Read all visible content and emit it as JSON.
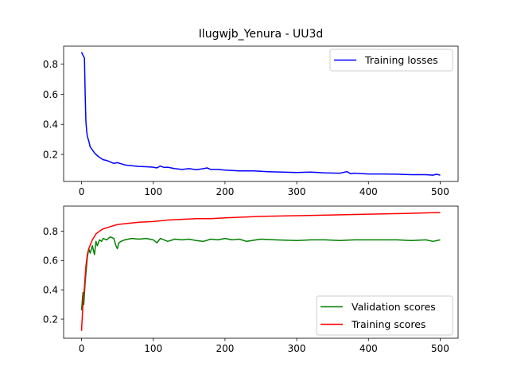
{
  "chart_data": [
    {
      "type": "line",
      "title": "Ilugwjb_Yenura - UU3d",
      "xlabel": "",
      "ylabel": "",
      "xlim": [
        -25,
        525
      ],
      "ylim": [
        0.02,
        0.92
      ],
      "xticks": [
        0,
        100,
        200,
        300,
        400,
        500
      ],
      "yticks": [
        0.2,
        0.4,
        0.6,
        0.8
      ],
      "grid": false,
      "legend_position": "top-right",
      "series": [
        {
          "name": "Training losses",
          "color": "#0000ff",
          "x": [
            0,
            2,
            4,
            5,
            6,
            7,
            8,
            10,
            12,
            15,
            18,
            20,
            25,
            30,
            35,
            40,
            45,
            50,
            55,
            60,
            70,
            80,
            90,
            100,
            105,
            110,
            115,
            120,
            130,
            140,
            150,
            160,
            170,
            175,
            180,
            190,
            200,
            220,
            240,
            260,
            280,
            300,
            320,
            340,
            360,
            370,
            375,
            380,
            400,
            420,
            440,
            460,
            480,
            490,
            495,
            500
          ],
          "values": [
            0.88,
            0.86,
            0.84,
            0.6,
            0.42,
            0.36,
            0.32,
            0.29,
            0.25,
            0.23,
            0.21,
            0.2,
            0.18,
            0.165,
            0.16,
            0.15,
            0.14,
            0.145,
            0.138,
            0.13,
            0.125,
            0.12,
            0.118,
            0.115,
            0.11,
            0.122,
            0.113,
            0.115,
            0.105,
            0.1,
            0.105,
            0.098,
            0.105,
            0.11,
            0.1,
            0.1,
            0.095,
            0.09,
            0.09,
            0.085,
            0.082,
            0.08,
            0.082,
            0.077,
            0.075,
            0.085,
            0.072,
            0.075,
            0.07,
            0.07,
            0.068,
            0.065,
            0.065,
            0.062,
            0.068,
            0.062
          ]
        }
      ]
    },
    {
      "type": "line",
      "title": "",
      "xlabel": "",
      "ylabel": "",
      "xlim": [
        -25,
        525
      ],
      "ylim": [
        0.07,
        0.97
      ],
      "xticks": [
        0,
        100,
        200,
        300,
        400,
        500
      ],
      "yticks": [
        0.2,
        0.4,
        0.6,
        0.8
      ],
      "grid": false,
      "legend_position": "bottom-right",
      "series": [
        {
          "name": "Validation scores",
          "color": "#008000",
          "x": [
            0,
            2,
            3,
            5,
            8,
            10,
            12,
            15,
            18,
            20,
            22,
            25,
            28,
            30,
            35,
            40,
            45,
            48,
            50,
            52,
            55,
            60,
            70,
            80,
            90,
            100,
            105,
            110,
            115,
            120,
            130,
            140,
            150,
            160,
            170,
            180,
            190,
            200,
            210,
            220,
            230,
            250,
            270,
            300,
            320,
            340,
            360,
            380,
            400,
            420,
            440,
            460,
            480,
            490,
            500
          ],
          "values": [
            0.26,
            0.38,
            0.3,
            0.45,
            0.62,
            0.68,
            0.65,
            0.7,
            0.64,
            0.73,
            0.7,
            0.74,
            0.73,
            0.75,
            0.74,
            0.76,
            0.75,
            0.7,
            0.68,
            0.72,
            0.73,
            0.74,
            0.75,
            0.745,
            0.75,
            0.74,
            0.72,
            0.75,
            0.74,
            0.73,
            0.745,
            0.74,
            0.745,
            0.735,
            0.73,
            0.745,
            0.74,
            0.75,
            0.74,
            0.745,
            0.73,
            0.745,
            0.74,
            0.735,
            0.74,
            0.74,
            0.735,
            0.74,
            0.74,
            0.74,
            0.74,
            0.735,
            0.74,
            0.73,
            0.74
          ]
        },
        {
          "name": "Training scores",
          "color": "#ff0000",
          "x": [
            0,
            2,
            4,
            6,
            8,
            10,
            15,
            20,
            25,
            30,
            40,
            50,
            60,
            80,
            100,
            120,
            140,
            160,
            180,
            200,
            250,
            300,
            350,
            400,
            450,
            490,
            500
          ],
          "values": [
            0.12,
            0.3,
            0.42,
            0.56,
            0.64,
            0.68,
            0.74,
            0.78,
            0.8,
            0.815,
            0.83,
            0.845,
            0.85,
            0.86,
            0.865,
            0.875,
            0.88,
            0.885,
            0.885,
            0.89,
            0.9,
            0.905,
            0.91,
            0.915,
            0.92,
            0.925,
            0.925
          ]
        }
      ]
    }
  ]
}
